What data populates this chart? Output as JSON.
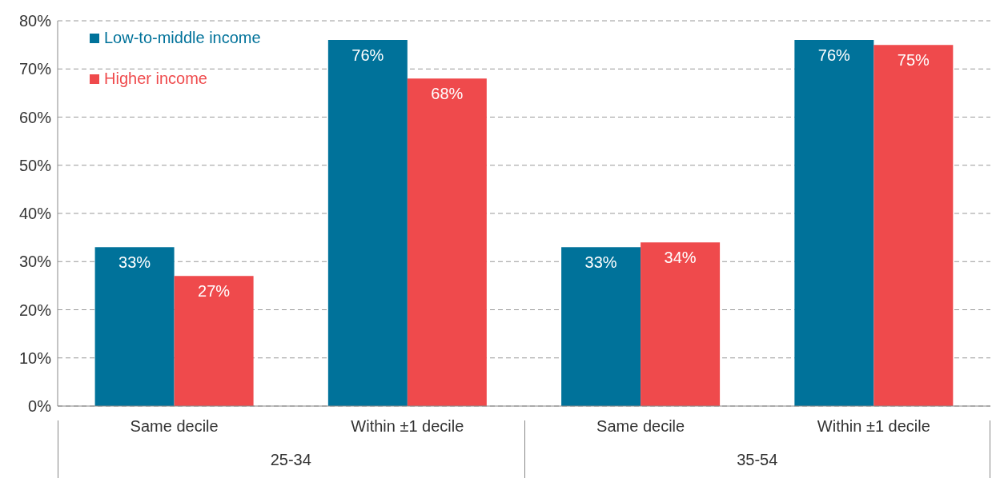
{
  "chart_data": {
    "type": "bar",
    "categories": [
      "Same decile",
      "Within ±1 decile",
      "Same decile",
      "Within ±1 decile"
    ],
    "annotations": [
      "25-34",
      "35-54"
    ],
    "series": [
      {
        "name": "Low-to-middle income",
        "color": "#00729a",
        "values": [
          33,
          76,
          33,
          76
        ],
        "value_labels": [
          "33%",
          "76%",
          "33%",
          "76%"
        ]
      },
      {
        "name": "Higher income",
        "color": "#ef4a4c",
        "values": [
          27,
          68,
          34,
          75
        ],
        "value_labels": [
          "27%",
          "68%",
          "34%",
          "75%"
        ]
      }
    ],
    "ylim": [
      0,
      80
    ],
    "yticks": [
      {
        "value": 0,
        "label": "0%"
      },
      {
        "value": 10,
        "label": "10%"
      },
      {
        "value": 20,
        "label": "20%"
      },
      {
        "value": 30,
        "label": "30%"
      },
      {
        "value": 40,
        "label": "40%"
      },
      {
        "value": 50,
        "label": "50%"
      },
      {
        "value": 60,
        "label": "60%"
      },
      {
        "value": 70,
        "label": "70%"
      },
      {
        "value": 80,
        "label": "80%"
      }
    ],
    "grid": "y",
    "legend": "top left"
  }
}
